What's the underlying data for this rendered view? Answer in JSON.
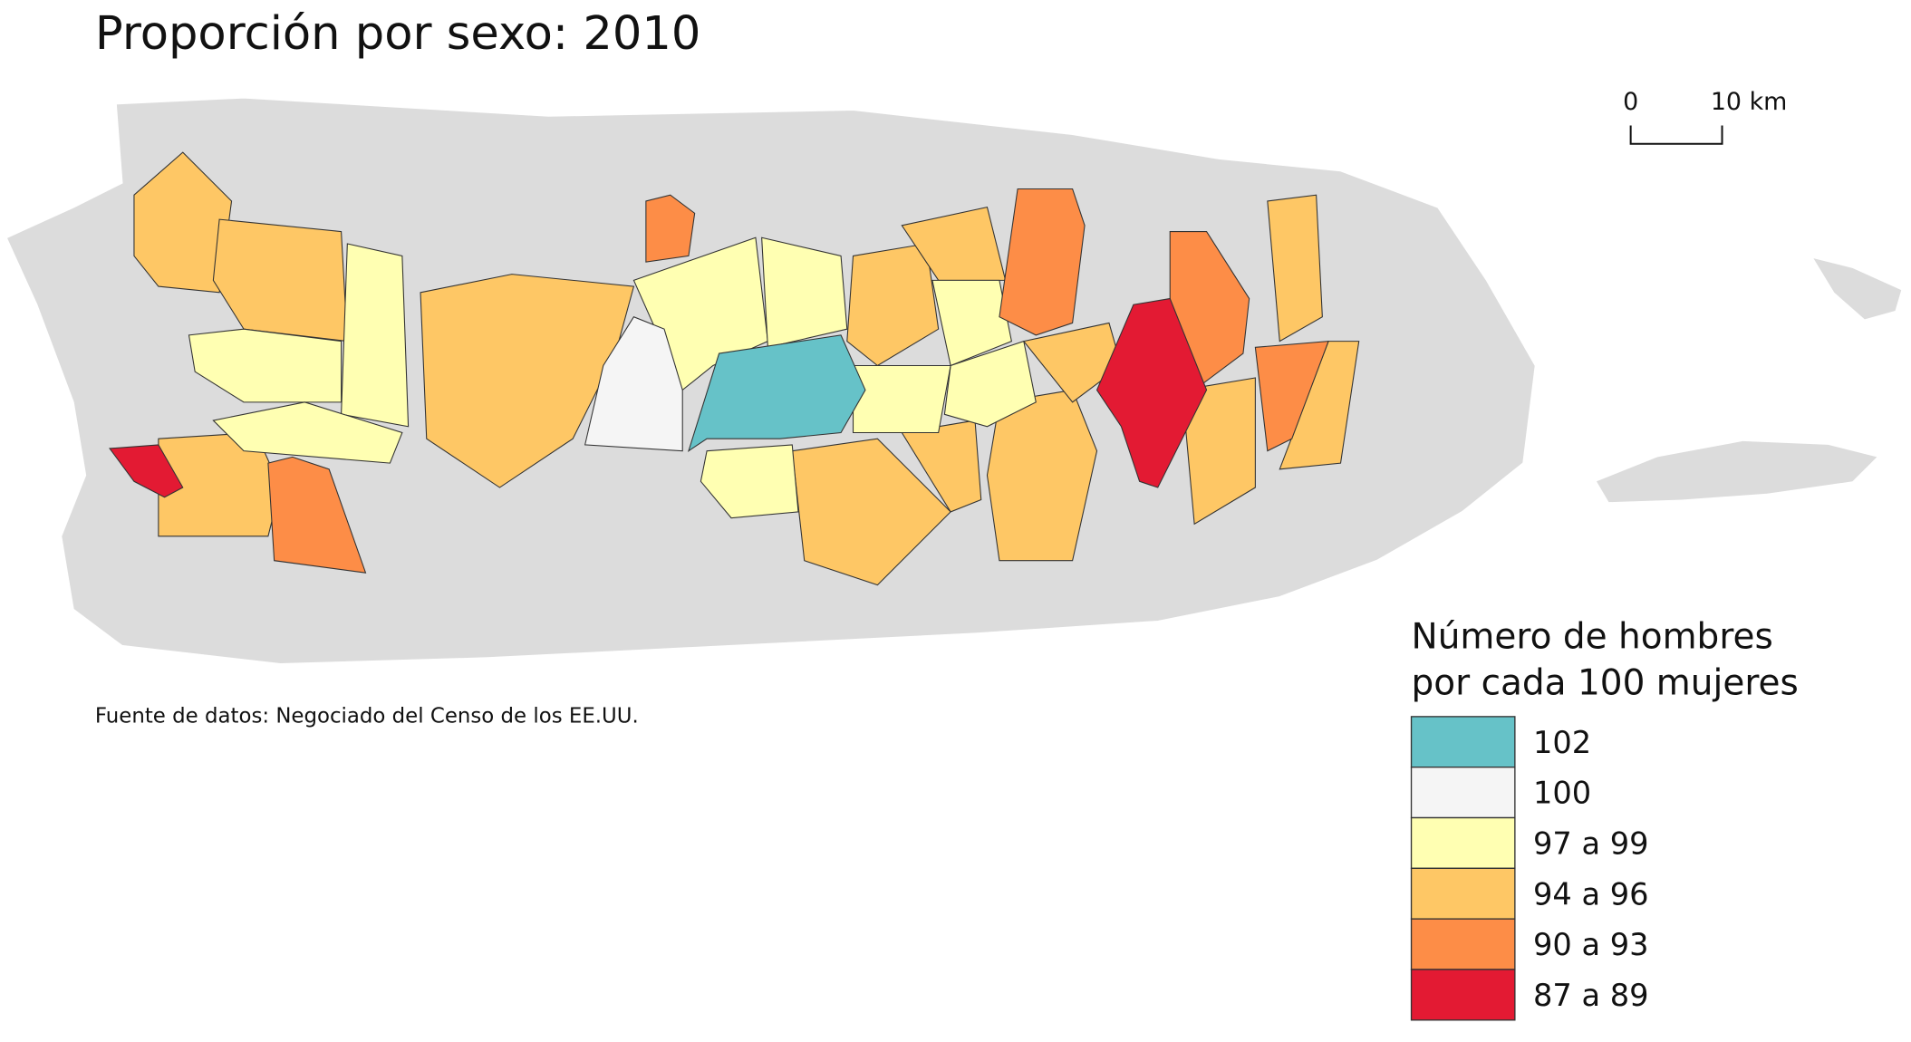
{
  "title": "Proporción por sexo: 2010",
  "source": "Fuente de datos: Negociado del Censo de los EE.UU.",
  "scale_bar": {
    "labels": [
      "0",
      "10 km"
    ]
  },
  "legend": {
    "title_lines": [
      "Número de hombres",
      "por cada 100 mujeres"
    ],
    "items": [
      {
        "label": "102",
        "color": "#66c2c8"
      },
      {
        "label": "100",
        "color": "#f5f5f5"
      },
      {
        "label": "97 a 99",
        "color": "#ffffb2"
      },
      {
        "label": "94 a 96",
        "color": "#fec765"
      },
      {
        "label": "90 a 93",
        "color": "#fd8d47"
      },
      {
        "label": "87 a 89",
        "color": "#e31a33"
      }
    ]
  }
}
